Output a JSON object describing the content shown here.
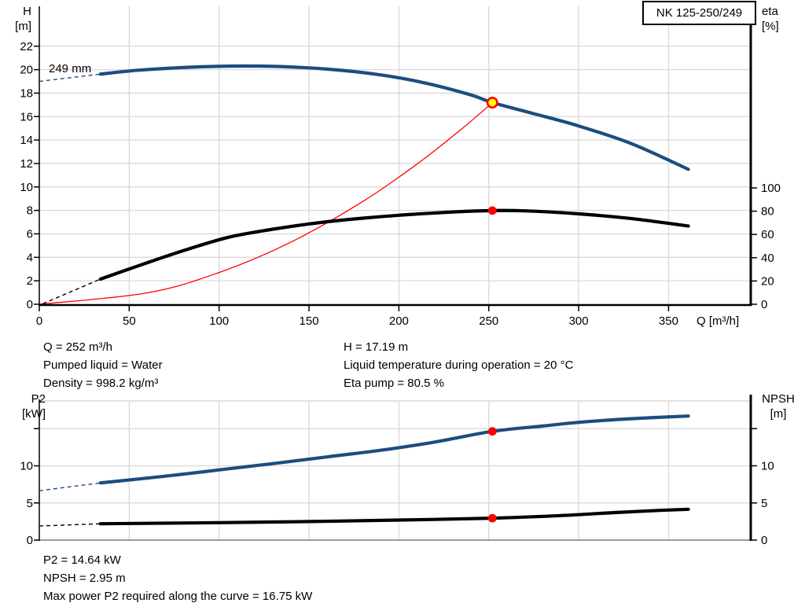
{
  "colors": {
    "curve_blue": "#1d4d7f",
    "curve_black": "#000000",
    "system_red": "#ff0000",
    "marker_red": "#ff0000",
    "marker_yellow": "#ffff00",
    "grid": "#d9d9d9",
    "axis": "#000000",
    "bottom_axis_gray": "#9b9b9b"
  },
  "info": {
    "left": [
      "Q = 252 m³/h",
      "Pumped liquid = Water",
      "Density = 998.2 kg/m³"
    ],
    "right": [
      "H = 17.19 m",
      "Liquid temperature during operation = 20 °C",
      "Eta pump = 80.5 %"
    ],
    "bottom": [
      "P2 = 14.64 kW",
      "NPSH = 2.95 m",
      "Max power P2 required along the curve = 16.75 kW"
    ]
  },
  "chart_data": [
    {
      "type": "line",
      "title": "NK 125-250/249",
      "xlabel": "Q [m³/h]",
      "annotation": "249 mm",
      "xlim": [
        0,
        395
      ],
      "x_ticks": [
        {
          "v": 0,
          "label": "0"
        },
        {
          "v": 50,
          "label": "50"
        },
        {
          "v": 100,
          "label": "100"
        },
        {
          "v": 150,
          "label": "150"
        },
        {
          "v": 200,
          "label": "200"
        },
        {
          "v": 250,
          "label": "250"
        },
        {
          "v": 300,
          "label": "300"
        },
        {
          "v": 350,
          "label": "350"
        }
      ],
      "left_axis": {
        "label_lines": [
          "H",
          "[m]"
        ],
        "lim": [
          0,
          25.4
        ],
        "ticks": [
          {
            "v": 0,
            "label": "0"
          },
          {
            "v": 2,
            "label": "2"
          },
          {
            "v": 4,
            "label": "4"
          },
          {
            "v": 6,
            "label": "6"
          },
          {
            "v": 8,
            "label": "8"
          },
          {
            "v": 10,
            "label": "10"
          },
          {
            "v": 12,
            "label": "12"
          },
          {
            "v": 14,
            "label": "14"
          },
          {
            "v": 16,
            "label": "16"
          },
          {
            "v": 18,
            "label": "18"
          },
          {
            "v": 20,
            "label": "20"
          },
          {
            "v": 22,
            "label": "22"
          }
        ]
      },
      "right_axis": {
        "label_lines": [
          "eta",
          "[%]"
        ],
        "lim": [
          0,
          100
        ],
        "ticks": [
          {
            "v": 0,
            "label": "0"
          },
          {
            "v": 20,
            "label": "20"
          },
          {
            "v": 40,
            "label": "40"
          },
          {
            "v": 60,
            "label": "60"
          },
          {
            "v": 80,
            "label": "80"
          },
          {
            "v": 100,
            "label": "100"
          }
        ]
      },
      "series": [
        {
          "name": "system-curve",
          "axis": "left",
          "style": "thin-red",
          "points": [
            [
              0,
              0
            ],
            [
              60,
              0.97
            ],
            [
              100,
              2.71
            ],
            [
              140,
              5.3
            ],
            [
              180,
              8.77
            ],
            [
              210,
              11.94
            ],
            [
              235,
              14.95
            ],
            [
              252,
              17.19
            ]
          ]
        },
        {
          "name": "efficiency-curve",
          "axis": "right",
          "style": "thick-black",
          "dash_lead": [
            [
              2,
              0.5
            ],
            [
              34,
              21.6
            ]
          ],
          "points": [
            [
              34,
              21.6
            ],
            [
              55,
              33
            ],
            [
              80,
              46
            ],
            [
              105,
              57.5
            ],
            [
              130,
              64.5
            ],
            [
              155,
              70
            ],
            [
              180,
              74
            ],
            [
              205,
              77
            ],
            [
              230,
              79.3
            ],
            [
              252,
              80.5
            ],
            [
              270,
              80.3
            ],
            [
              300,
              77.7
            ],
            [
              330,
              73.5
            ],
            [
              361,
              67.2
            ]
          ]
        },
        {
          "name": "head-curve",
          "axis": "left",
          "style": "thick-blue",
          "dash_lead": [
            [
              0,
              19.0
            ],
            [
              34,
              19.62
            ]
          ],
          "points": [
            [
              34,
              19.62
            ],
            [
              55,
              19.95
            ],
            [
              80,
              20.18
            ],
            [
              105,
              20.3
            ],
            [
              130,
              20.28
            ],
            [
              160,
              20.05
            ],
            [
              190,
              19.55
            ],
            [
              215,
              18.85
            ],
            [
              240,
              17.85
            ],
            [
              252,
              17.19
            ],
            [
              275,
              16.25
            ],
            [
              300,
              15.2
            ],
            [
              330,
              13.65
            ],
            [
              361,
              11.5
            ]
          ]
        }
      ],
      "markers": [
        {
          "name": "duty-point-marker",
          "x": 252,
          "value": 17.19,
          "axis": "left",
          "style": "yellow-red"
        },
        {
          "name": "efficiency-point-marker",
          "x": 252,
          "value": 80.5,
          "axis": "right",
          "style": "red"
        }
      ]
    },
    {
      "type": "line",
      "title": "",
      "xlabel": "",
      "x_gridlines": [
        50,
        100,
        150,
        200,
        250,
        300,
        350
      ],
      "left_axis": {
        "label_lines": [
          "P2",
          "[kW]"
        ],
        "lim": [
          0,
          18.7
        ],
        "ticks": [
          {
            "v": 0,
            "label": "0"
          },
          {
            "v": 5,
            "label": "5"
          },
          {
            "v": 10,
            "label": "10"
          },
          {
            "v": 15,
            "label": ""
          }
        ]
      },
      "right_axis": {
        "label_lines": [
          "NPSH",
          "[m]"
        ],
        "lim": [
          0,
          18.7
        ],
        "ticks": [
          {
            "v": 0,
            "label": "0"
          },
          {
            "v": 5,
            "label": "5"
          },
          {
            "v": 10,
            "label": "10"
          },
          {
            "v": 15,
            "label": ""
          }
        ]
      },
      "series": [
        {
          "name": "npsh-curve",
          "axis": "right",
          "style": "thick-black",
          "dash_lead": [
            [
              0,
              1.9
            ],
            [
              34,
              2.2
            ]
          ],
          "points": [
            [
              34,
              2.2
            ],
            [
              100,
              2.35
            ],
            [
              150,
              2.5
            ],
            [
              200,
              2.7
            ],
            [
              252,
              2.95
            ],
            [
              290,
              3.3
            ],
            [
              320,
              3.7
            ],
            [
              345,
              4.0
            ],
            [
              361,
              4.15
            ]
          ]
        },
        {
          "name": "p2-curve",
          "axis": "left",
          "style": "thick-blue",
          "dash_lead": [
            [
              0,
              6.65
            ],
            [
              34,
              7.7
            ]
          ],
          "points": [
            [
              34,
              7.7
            ],
            [
              70,
              8.6
            ],
            [
              100,
              9.45
            ],
            [
              130,
              10.3
            ],
            [
              160,
              11.2
            ],
            [
              190,
              12.1
            ],
            [
              220,
              13.2
            ],
            [
              252,
              14.64
            ],
            [
              280,
              15.35
            ],
            [
              300,
              15.85
            ],
            [
              330,
              16.35
            ],
            [
              361,
              16.7
            ]
          ]
        }
      ],
      "markers": [
        {
          "name": "p2-point-marker",
          "x": 252,
          "value": 14.64,
          "axis": "left",
          "style": "red"
        },
        {
          "name": "npsh-point-marker",
          "x": 252,
          "value": 2.95,
          "axis": "right",
          "style": "red"
        }
      ]
    }
  ]
}
